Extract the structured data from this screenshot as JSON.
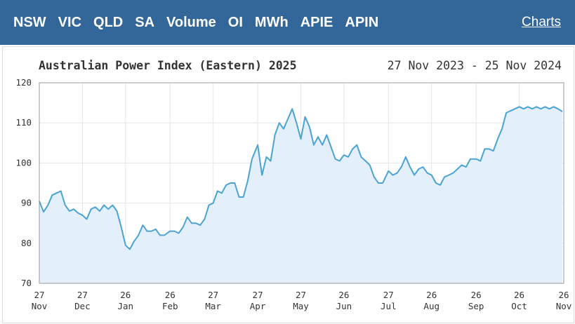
{
  "nav": {
    "items": [
      "NSW",
      "VIC",
      "QLD",
      "SA",
      "Volume",
      "OI",
      "MWh",
      "APIE",
      "APIN"
    ],
    "charts_link": "Charts"
  },
  "chart_data": {
    "type": "area",
    "title": "Australian Power Index (Eastern) 2025",
    "subtitle": "27 Nov 2023 - 25 Nov 2024",
    "xlabel": "",
    "ylabel": "",
    "ylim": [
      70,
      120
    ],
    "yticks": [
      70,
      80,
      90,
      100,
      110,
      120
    ],
    "xlim": [
      "2023-11-27",
      "2024-11-26"
    ],
    "xticks": [
      {
        "date": "2023-11-27",
        "day": "27",
        "month": "Nov"
      },
      {
        "date": "2023-12-27",
        "day": "27",
        "month": "Dec"
      },
      {
        "date": "2024-01-26",
        "day": "26",
        "month": "Jan"
      },
      {
        "date": "2024-02-26",
        "day": "26",
        "month": "Feb"
      },
      {
        "date": "2024-03-27",
        "day": "27",
        "month": "Mar"
      },
      {
        "date": "2024-04-27",
        "day": "27",
        "month": "Apr"
      },
      {
        "date": "2024-05-27",
        "day": "27",
        "month": "May"
      },
      {
        "date": "2024-06-26",
        "day": "26",
        "month": "Jun"
      },
      {
        "date": "2024-07-27",
        "day": "27",
        "month": "Jul"
      },
      {
        "date": "2024-08-26",
        "day": "26",
        "month": "Aug"
      },
      {
        "date": "2024-09-26",
        "day": "26",
        "month": "Sep"
      },
      {
        "date": "2024-10-26",
        "day": "26",
        "month": "Oct"
      },
      {
        "date": "2024-11-26",
        "day": "26",
        "month": "Nov"
      }
    ],
    "grid": true,
    "colors": {
      "line": "#4aa3d3",
      "fill": "#e3f0fc",
      "grid": "#e6e6e6",
      "axis": "#999999"
    },
    "series": [
      {
        "x": [
          "2023-11-27",
          "2023-11-30",
          "2023-12-03",
          "2023-12-06",
          "2023-12-09",
          "2023-12-12",
          "2023-12-15",
          "2023-12-18",
          "2023-12-21",
          "2023-12-24",
          "2023-12-27",
          "2023-12-30",
          "2024-01-02",
          "2024-01-05",
          "2024-01-08",
          "2024-01-11",
          "2024-01-14",
          "2024-01-17",
          "2024-01-20",
          "2024-01-23",
          "2024-01-26",
          "2024-01-29",
          "2024-02-01",
          "2024-02-04",
          "2024-02-07",
          "2024-02-10",
          "2024-02-13",
          "2024-02-16",
          "2024-02-19",
          "2024-02-22",
          "2024-02-26",
          "2024-02-29",
          "2024-03-03",
          "2024-03-06",
          "2024-03-09",
          "2024-03-12",
          "2024-03-15",
          "2024-03-18",
          "2024-03-21",
          "2024-03-24",
          "2024-03-27",
          "2024-03-30",
          "2024-04-02",
          "2024-04-05",
          "2024-04-08",
          "2024-04-11",
          "2024-04-14",
          "2024-04-17",
          "2024-04-20",
          "2024-04-23",
          "2024-04-27",
          "2024-04-30",
          "2024-05-03",
          "2024-05-06",
          "2024-05-09",
          "2024-05-12",
          "2024-05-15",
          "2024-05-18",
          "2024-05-21",
          "2024-05-24",
          "2024-05-27",
          "2024-05-30",
          "2024-06-02",
          "2024-06-05",
          "2024-06-08",
          "2024-06-11",
          "2024-06-14",
          "2024-06-17",
          "2024-06-20",
          "2024-06-23",
          "2024-06-26",
          "2024-06-29",
          "2024-07-02",
          "2024-07-05",
          "2024-07-08",
          "2024-07-11",
          "2024-07-14",
          "2024-07-17",
          "2024-07-20",
          "2024-07-23",
          "2024-07-27",
          "2024-07-30",
          "2024-08-02",
          "2024-08-05",
          "2024-08-08",
          "2024-08-11",
          "2024-08-14",
          "2024-08-17",
          "2024-08-20",
          "2024-08-23",
          "2024-08-26",
          "2024-08-29",
          "2024-09-01",
          "2024-09-04",
          "2024-09-07",
          "2024-09-10",
          "2024-09-13",
          "2024-09-16",
          "2024-09-19",
          "2024-09-22",
          "2024-09-26",
          "2024-09-29",
          "2024-10-02",
          "2024-10-05",
          "2024-10-08",
          "2024-10-11",
          "2024-10-14",
          "2024-10-17",
          "2024-10-20",
          "2024-10-23",
          "2024-10-26",
          "2024-10-29",
          "2024-11-01",
          "2024-11-04",
          "2024-11-07",
          "2024-11-10",
          "2024-11-13",
          "2024-11-16",
          "2024-11-19",
          "2024-11-22",
          "2024-11-25"
        ],
        "values": [
          90.5,
          87.8,
          89.5,
          92.0,
          92.5,
          93.0,
          89.5,
          88.0,
          88.5,
          87.5,
          87.0,
          86.0,
          88.5,
          89.0,
          88.0,
          89.5,
          88.5,
          89.5,
          88.0,
          84.0,
          79.5,
          78.5,
          80.5,
          82.0,
          84.5,
          83.0,
          83.0,
          83.5,
          82.0,
          82.0,
          83.0,
          83.0,
          82.5,
          84.0,
          86.5,
          85.0,
          85.0,
          84.5,
          86.0,
          89.5,
          90.0,
          93.0,
          92.5,
          94.5,
          95.0,
          95.0,
          91.5,
          91.5,
          95.5,
          101.0,
          104.5,
          97.0,
          101.5,
          100.5,
          107.0,
          110.0,
          108.5,
          111.0,
          113.5,
          110.0,
          106.0,
          111.5,
          109.0,
          104.5,
          106.5,
          104.5,
          107.0,
          104.0,
          101.0,
          100.5,
          102.0,
          101.5,
          103.5,
          104.5,
          101.5,
          100.5,
          99.5,
          96.5,
          95.0,
          95.0,
          98.0,
          97.0,
          97.5,
          99.0,
          101.5,
          99.0,
          97.0,
          98.5,
          99.0,
          97.5,
          97.0,
          95.0,
          94.5,
          96.5,
          97.0,
          97.5,
          98.5,
          99.5,
          99.0,
          101.0,
          101.0,
          100.5,
          103.5,
          103.5,
          103.0,
          106.0,
          108.5,
          112.5,
          113.0,
          113.5,
          114.0,
          113.5,
          114.0,
          113.5,
          114.0,
          113.5,
          114.0,
          113.5,
          114.0,
          113.5,
          112.8
        ]
      }
    ]
  }
}
